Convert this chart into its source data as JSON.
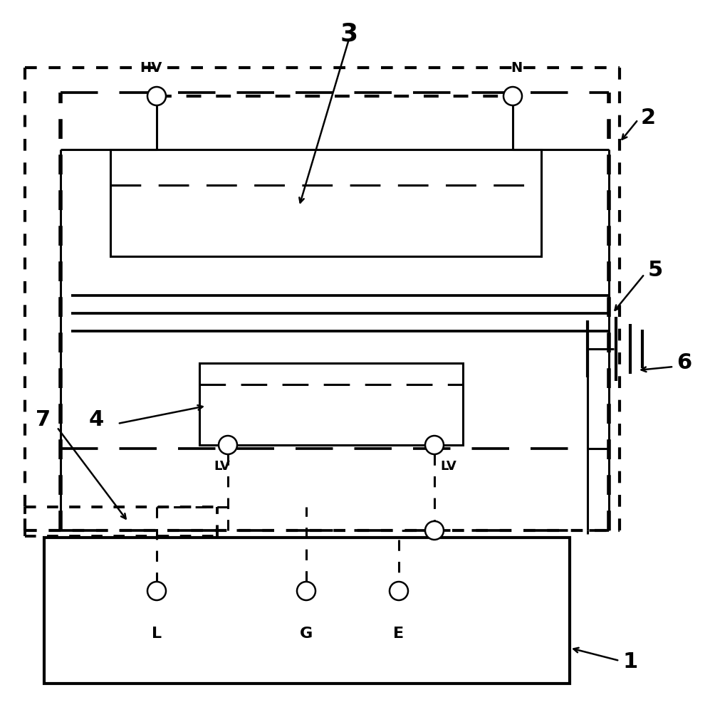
{
  "fig_width": 9.97,
  "fig_height": 10.0,
  "bg_color": "#ffffff",
  "line_color": "#000000",
  "label_1": "1",
  "label_2": "2",
  "label_3": "3",
  "label_4": "4",
  "label_5": "5",
  "label_6": "6",
  "label_7": "7",
  "label_HV": "HV",
  "label_N": "N",
  "label_LV1": "LV",
  "label_LV2": "LV",
  "label_L": "L",
  "label_G": "G",
  "label_E": "E",
  "lw_thick": 3.0,
  "lw_med": 2.2,
  "lw_thin": 1.8,
  "lw_arrow": 1.8
}
